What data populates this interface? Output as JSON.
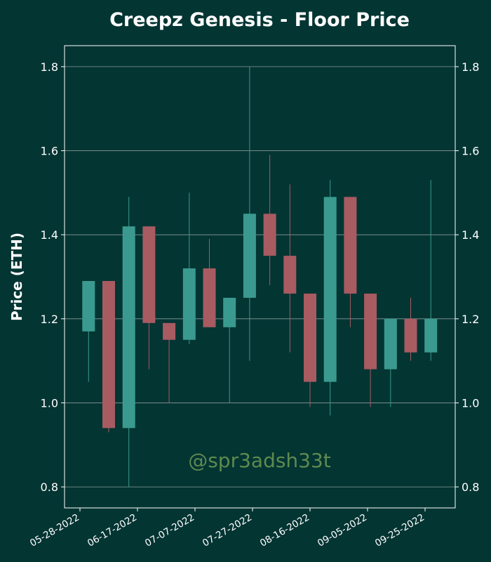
{
  "chart_data": {
    "type": "candlestick",
    "title": "Creepz Genesis - Floor Price",
    "ylabel": "Price (ETH)",
    "xlabel": "",
    "ylim": [
      0.75,
      1.85
    ],
    "yticks": [
      "0.8",
      "1.0",
      "1.2",
      "1.4",
      "1.6",
      "1.8"
    ],
    "xticks": [
      "05-28-2022",
      "06-17-2022",
      "07-07-2022",
      "07-27-2022",
      "08-16-2022",
      "09-05-2022",
      "09-25-2022"
    ],
    "grid": true,
    "watermark": "@spr3adsh33t",
    "colors": {
      "background": "#033533",
      "up": "#3a9a8f",
      "down": "#a85b61",
      "grid": "#8a9a97",
      "axis": "#ffffff",
      "watermark": "#5e8a4e"
    },
    "candles": [
      {
        "date": "05-31-2022",
        "open": 1.17,
        "high": 1.29,
        "low": 1.05,
        "close": 1.29
      },
      {
        "date": "06-07-2022",
        "open": 1.29,
        "high": 1.29,
        "low": 0.93,
        "close": 0.94
      },
      {
        "date": "06-14-2022",
        "open": 0.94,
        "high": 1.49,
        "low": 0.8,
        "close": 1.42
      },
      {
        "date": "06-21-2022",
        "open": 1.42,
        "high": 1.42,
        "low": 1.08,
        "close": 1.19
      },
      {
        "date": "06-28-2022",
        "open": 1.19,
        "high": 1.19,
        "low": 1.0,
        "close": 1.15
      },
      {
        "date": "07-05-2022",
        "open": 1.15,
        "high": 1.5,
        "low": 1.14,
        "close": 1.32
      },
      {
        "date": "07-12-2022",
        "open": 1.32,
        "high": 1.39,
        "low": 1.18,
        "close": 1.18
      },
      {
        "date": "07-19-2022",
        "open": 1.18,
        "high": 1.25,
        "low": 1.0,
        "close": 1.25
      },
      {
        "date": "07-26-2022",
        "open": 1.25,
        "high": 1.8,
        "low": 1.1,
        "close": 1.45
      },
      {
        "date": "08-02-2022",
        "open": 1.45,
        "high": 1.59,
        "low": 1.28,
        "close": 1.35
      },
      {
        "date": "08-09-2022",
        "open": 1.35,
        "high": 1.52,
        "low": 1.12,
        "close": 1.26
      },
      {
        "date": "08-16-2022",
        "open": 1.26,
        "high": 1.26,
        "low": 0.99,
        "close": 1.05
      },
      {
        "date": "08-23-2022",
        "open": 1.05,
        "high": 1.53,
        "low": 0.97,
        "close": 1.49
      },
      {
        "date": "08-30-2022",
        "open": 1.49,
        "high": 1.49,
        "low": 1.18,
        "close": 1.26
      },
      {
        "date": "09-06-2022",
        "open": 1.26,
        "high": 1.26,
        "low": 0.99,
        "close": 1.08
      },
      {
        "date": "09-13-2022",
        "open": 1.08,
        "high": 1.2,
        "low": 0.99,
        "close": 1.2
      },
      {
        "date": "09-20-2022",
        "open": 1.2,
        "high": 1.25,
        "low": 1.1,
        "close": 1.12
      },
      {
        "date": "09-27-2022",
        "open": 1.12,
        "high": 1.53,
        "low": 1.1,
        "close": 1.2
      }
    ]
  }
}
